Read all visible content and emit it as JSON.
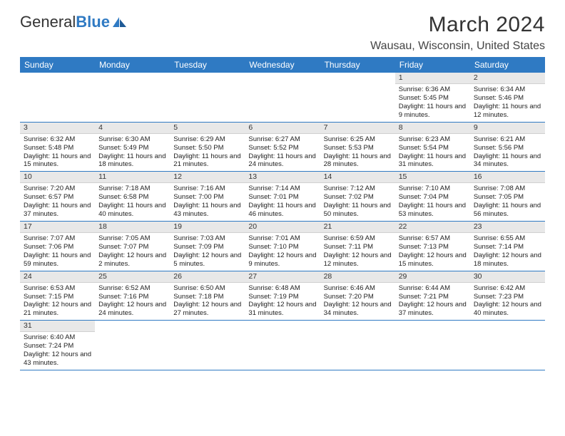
{
  "brand": {
    "part1": "General",
    "part2": "Blue"
  },
  "title": "March 2024",
  "location": "Wausau, Wisconsin, United States",
  "colors": {
    "accent": "#2f7ac3",
    "headerRow": "#e8e8e8"
  },
  "weekdays": [
    "Sunday",
    "Monday",
    "Tuesday",
    "Wednesday",
    "Thursday",
    "Friday",
    "Saturday"
  ],
  "weeks": [
    [
      null,
      null,
      null,
      null,
      null,
      {
        "num": "1",
        "sunrise": "6:36 AM",
        "sunset": "5:45 PM",
        "daylight": "11 hours and 9 minutes."
      },
      {
        "num": "2",
        "sunrise": "6:34 AM",
        "sunset": "5:46 PM",
        "daylight": "11 hours and 12 minutes."
      }
    ],
    [
      {
        "num": "3",
        "sunrise": "6:32 AM",
        "sunset": "5:48 PM",
        "daylight": "11 hours and 15 minutes."
      },
      {
        "num": "4",
        "sunrise": "6:30 AM",
        "sunset": "5:49 PM",
        "daylight": "11 hours and 18 minutes."
      },
      {
        "num": "5",
        "sunrise": "6:29 AM",
        "sunset": "5:50 PM",
        "daylight": "11 hours and 21 minutes."
      },
      {
        "num": "6",
        "sunrise": "6:27 AM",
        "sunset": "5:52 PM",
        "daylight": "11 hours and 24 minutes."
      },
      {
        "num": "7",
        "sunrise": "6:25 AM",
        "sunset": "5:53 PM",
        "daylight": "11 hours and 28 minutes."
      },
      {
        "num": "8",
        "sunrise": "6:23 AM",
        "sunset": "5:54 PM",
        "daylight": "11 hours and 31 minutes."
      },
      {
        "num": "9",
        "sunrise": "6:21 AM",
        "sunset": "5:56 PM",
        "daylight": "11 hours and 34 minutes."
      }
    ],
    [
      {
        "num": "10",
        "sunrise": "7:20 AM",
        "sunset": "6:57 PM",
        "daylight": "11 hours and 37 minutes."
      },
      {
        "num": "11",
        "sunrise": "7:18 AM",
        "sunset": "6:58 PM",
        "daylight": "11 hours and 40 minutes."
      },
      {
        "num": "12",
        "sunrise": "7:16 AM",
        "sunset": "7:00 PM",
        "daylight": "11 hours and 43 minutes."
      },
      {
        "num": "13",
        "sunrise": "7:14 AM",
        "sunset": "7:01 PM",
        "daylight": "11 hours and 46 minutes."
      },
      {
        "num": "14",
        "sunrise": "7:12 AM",
        "sunset": "7:02 PM",
        "daylight": "11 hours and 50 minutes."
      },
      {
        "num": "15",
        "sunrise": "7:10 AM",
        "sunset": "7:04 PM",
        "daylight": "11 hours and 53 minutes."
      },
      {
        "num": "16",
        "sunrise": "7:08 AM",
        "sunset": "7:05 PM",
        "daylight": "11 hours and 56 minutes."
      }
    ],
    [
      {
        "num": "17",
        "sunrise": "7:07 AM",
        "sunset": "7:06 PM",
        "daylight": "11 hours and 59 minutes."
      },
      {
        "num": "18",
        "sunrise": "7:05 AM",
        "sunset": "7:07 PM",
        "daylight": "12 hours and 2 minutes."
      },
      {
        "num": "19",
        "sunrise": "7:03 AM",
        "sunset": "7:09 PM",
        "daylight": "12 hours and 5 minutes."
      },
      {
        "num": "20",
        "sunrise": "7:01 AM",
        "sunset": "7:10 PM",
        "daylight": "12 hours and 9 minutes."
      },
      {
        "num": "21",
        "sunrise": "6:59 AM",
        "sunset": "7:11 PM",
        "daylight": "12 hours and 12 minutes."
      },
      {
        "num": "22",
        "sunrise": "6:57 AM",
        "sunset": "7:13 PM",
        "daylight": "12 hours and 15 minutes."
      },
      {
        "num": "23",
        "sunrise": "6:55 AM",
        "sunset": "7:14 PM",
        "daylight": "12 hours and 18 minutes."
      }
    ],
    [
      {
        "num": "24",
        "sunrise": "6:53 AM",
        "sunset": "7:15 PM",
        "daylight": "12 hours and 21 minutes."
      },
      {
        "num": "25",
        "sunrise": "6:52 AM",
        "sunset": "7:16 PM",
        "daylight": "12 hours and 24 minutes."
      },
      {
        "num": "26",
        "sunrise": "6:50 AM",
        "sunset": "7:18 PM",
        "daylight": "12 hours and 27 minutes."
      },
      {
        "num": "27",
        "sunrise": "6:48 AM",
        "sunset": "7:19 PM",
        "daylight": "12 hours and 31 minutes."
      },
      {
        "num": "28",
        "sunrise": "6:46 AM",
        "sunset": "7:20 PM",
        "daylight": "12 hours and 34 minutes."
      },
      {
        "num": "29",
        "sunrise": "6:44 AM",
        "sunset": "7:21 PM",
        "daylight": "12 hours and 37 minutes."
      },
      {
        "num": "30",
        "sunrise": "6:42 AM",
        "sunset": "7:23 PM",
        "daylight": "12 hours and 40 minutes."
      }
    ],
    [
      {
        "num": "31",
        "sunrise": "6:40 AM",
        "sunset": "7:24 PM",
        "daylight": "12 hours and 43 minutes."
      },
      null,
      null,
      null,
      null,
      null,
      null
    ]
  ],
  "labels": {
    "sunrise": "Sunrise:",
    "sunset": "Sunset:",
    "daylight": "Daylight:"
  }
}
